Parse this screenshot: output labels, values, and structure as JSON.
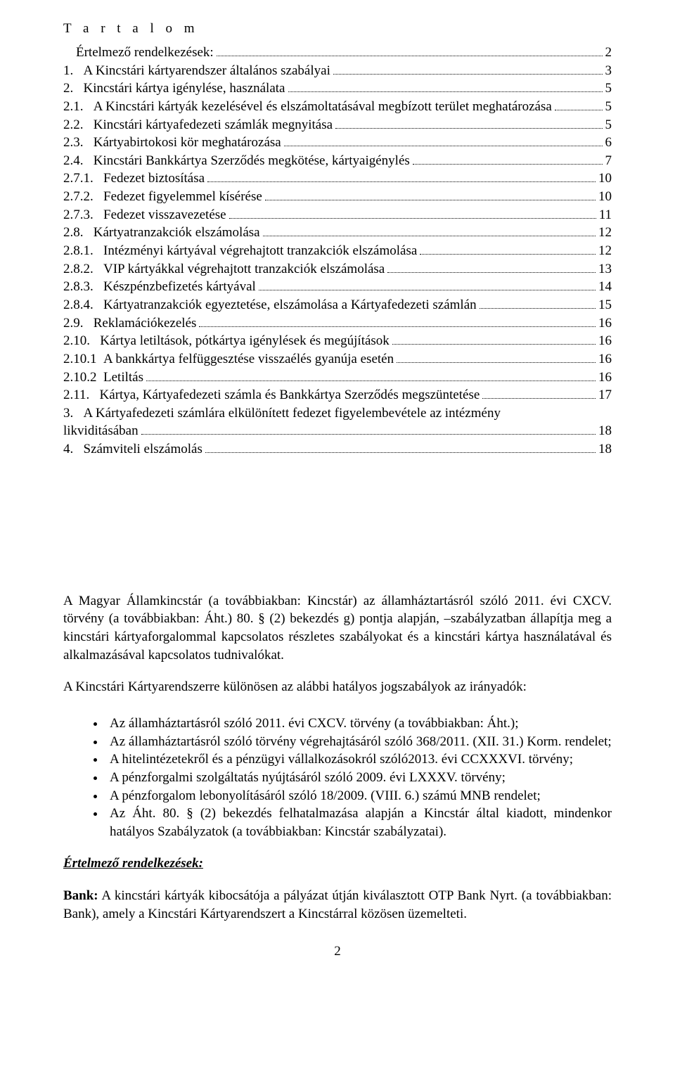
{
  "title": "T a r t a l o m",
  "toc": [
    {
      "indent": 1,
      "label": "",
      "text": "Értelmező rendelkezések:",
      "page": "2"
    },
    {
      "indent": 0,
      "label": "1.   ",
      "text": "A Kincstári kártyarendszer általános szabályai",
      "page": "3"
    },
    {
      "indent": 0,
      "label": "2.   ",
      "text": "Kincstári kártya igénylése, használata",
      "page": "5"
    },
    {
      "indent": 0,
      "label": "2.1.   ",
      "text": "A Kincstári kártyák kezelésével és elszámoltatásával megbízott terület meghatározása",
      "page": "5"
    },
    {
      "indent": 0,
      "label": "2.2.   ",
      "text": "Kincstári kártyafedezeti számlák megnyitása",
      "page": "5"
    },
    {
      "indent": 0,
      "label": "2.3.   ",
      "text": "Kártyabirtokosi kör meghatározása",
      "page": "6"
    },
    {
      "indent": 0,
      "label": "2.4.   ",
      "text": "Kincstári Bankkártya Szerződés megkötése, kártyaigénylés",
      "page": "7"
    },
    {
      "indent": 0,
      "label": "2.7.1.   ",
      "text": "Fedezet biztosítása",
      "page": "10"
    },
    {
      "indent": 0,
      "label": "2.7.2.   ",
      "text": "Fedezet figyelemmel kísérése",
      "page": "10"
    },
    {
      "indent": 0,
      "label": "2.7.3.   ",
      "text": "Fedezet visszavezetése",
      "page": "11"
    },
    {
      "indent": 0,
      "label": "2.8.   ",
      "text": "Kártyatranzakciók elszámolása",
      "page": "12"
    },
    {
      "indent": 0,
      "label": "2.8.1.   ",
      "text": "Intézményi kártyával végrehajtott tranzakciók elszámolása",
      "page": "12"
    },
    {
      "indent": 0,
      "label": "2.8.2.   ",
      "text": "VIP kártyákkal végrehajtott tranzakciók elszámolása",
      "page": "13"
    },
    {
      "indent": 0,
      "label": "2.8.3.   ",
      "text": "Készpénzbefizetés kártyával",
      "page": "14"
    },
    {
      "indent": 0,
      "label": "2.8.4.   ",
      "text": "Kártyatranzakciók egyeztetése, elszámolása a Kártyafedezeti számlán",
      "page": "15"
    },
    {
      "indent": 0,
      "label": "2.9.   ",
      "text": "Reklamációkezelés",
      "page": "16"
    },
    {
      "indent": 0,
      "label": "2.10.   ",
      "text": "Kártya letiltások, pótkártya igénylések és megújítások",
      "page": "16"
    },
    {
      "indent": 0,
      "label": "2.10.1  ",
      "text": "A bankkártya felfüggesztése visszaélés gyanúja esetén",
      "page": "16"
    },
    {
      "indent": 0,
      "label": "2.10.2  ",
      "text": "Letiltás",
      "page": "16"
    },
    {
      "indent": 0,
      "label": "2.11.   ",
      "text": "Kártya, Kártyafedezeti számla és Bankkártya Szerződés megszüntetése",
      "page": "17"
    },
    {
      "indent": 0,
      "label": "3.   ",
      "text": "A Kártyafedezeti számlára elkülönített fedezet figyelembevétele az intézmény",
      "page": ""
    },
    {
      "indent": 0,
      "label": "",
      "text": "likviditásában",
      "page": "18"
    },
    {
      "indent": 0,
      "label": "4.   ",
      "text": "Számviteli elszámolás",
      "page": "18"
    }
  ],
  "para1": "A Magyar Államkincstár (a továbbiakban: Kincstár) az államháztartásról szóló 2011. évi CXCV. törvény (a továbbiakban: Áht.) 80. § (2) bekezdés g) pontja alapján, –szabályzatban állapítja meg a kincstári kártyaforgalommal kapcsolatos részletes szabályokat és a kincstári kártya használatával és alkalmazásával kapcsolatos tudnivalókat.",
  "para2": "A Kincstári Kártyarendszerre különösen az alábbi hatályos jogszabályok az irányadók:",
  "bullets": [
    "Az államháztartásról szóló 2011. évi CXCV. törvény (a továbbiakban: Áht.);",
    "Az államháztartásról szóló törvény végrehajtásáról szóló 368/2011. (XII. 31.) Korm. rendelet;",
    "A hitelintézetekről és a pénzügyi vállalkozásokról szóló2013. évi CCXXXVI. törvény;",
    "A pénzforgalmi szolgáltatás nyújtásáról szóló 2009. évi LXXXV. törvény;",
    "A pénzforgalom lebonyolításáról szóló 18/2009. (VIII. 6.) számú MNB rendelet;",
    "Az Áht. 80. § (2) bekezdés felhatalmazása alapján a Kincstár által kiadott, mindenkor hatályos Szabályzatok (a továbbiakban: Kincstár szabályzatai)."
  ],
  "heading2": "Értelmező rendelkezések:",
  "para3_bold": "Bank:",
  "para3_rest": " A kincstári kártyák kibocsátója a pályázat útján kiválasztott OTP Bank Nyrt. (a továbbiakban: Bank), amely a Kincstári Kártyarendszert a Kincstárral közösen üzemelteti.",
  "pagenum": "2"
}
